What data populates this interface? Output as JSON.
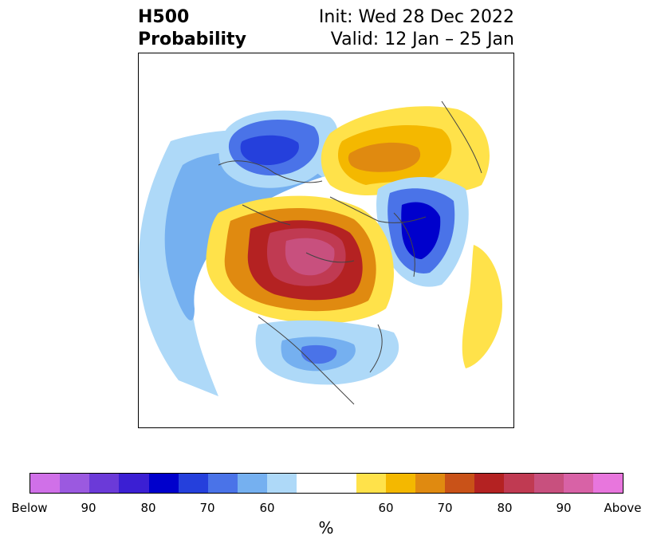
{
  "header": {
    "title_line1": "H500",
    "title_line2": "Probability",
    "init_text": "Init: Wed 28 Dec 2022",
    "valid_text": "Valid: 12 Jan – 25 Jan"
  },
  "map": {
    "projection": "north-polar-stereographic",
    "variable": "500 hPa geopotential height probability"
  },
  "colorbar": {
    "unit": "%",
    "tick_labels": [
      "Below",
      "90",
      "80",
      "70",
      "60",
      "60",
      "70",
      "80",
      "90",
      "Above"
    ],
    "below_colors": [
      "#d070e8",
      "#9b59e0",
      "#6b3ad8",
      "#3b1fd3",
      "#0000cc",
      "#2540dc",
      "#4a73e8",
      "#75b0f0",
      "#aed9f8"
    ],
    "neutral_color": "#ffffff",
    "above_colors": [
      "#ffe24a",
      "#f4b800",
      "#e08a10",
      "#c95218",
      "#b42222",
      "#c03a52",
      "#c8507e",
      "#d862a6",
      "#e876dd"
    ]
  }
}
